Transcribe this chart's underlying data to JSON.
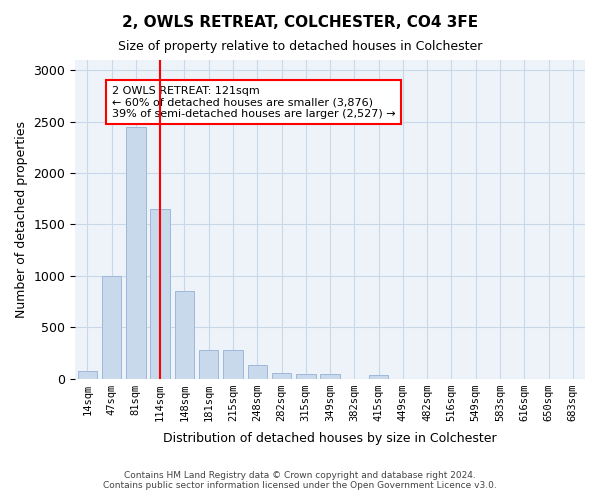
{
  "title": "2, OWLS RETREAT, COLCHESTER, CO4 3FE",
  "subtitle": "Size of property relative to detached houses in Colchester",
  "xlabel": "Distribution of detached houses by size in Colchester",
  "ylabel": "Number of detached properties",
  "categories": [
    "14sqm",
    "47sqm",
    "81sqm",
    "114sqm",
    "148sqm",
    "181sqm",
    "215sqm",
    "248sqm",
    "282sqm",
    "315sqm",
    "349sqm",
    "382sqm",
    "415sqm",
    "449sqm",
    "482sqm",
    "516sqm",
    "549sqm",
    "583sqm",
    "616sqm",
    "650sqm",
    "683sqm"
  ],
  "values": [
    75,
    1000,
    2450,
    1650,
    850,
    275,
    275,
    130,
    50,
    40,
    40,
    0,
    30,
    0,
    0,
    0,
    0,
    0,
    0,
    0,
    0
  ],
  "bar_color": "#c9d9ec",
  "bar_edge_color": "#a0b8d8",
  "grid_color": "#c8d8e8",
  "background_color": "#eef3f9",
  "vline_x": 2,
  "vline_color": "red",
  "annotation_text": "2 OWLS RETREAT: 121sqm\n← 60% of detached houses are smaller (3,876)\n39% of semi-detached houses are larger (2,527) →",
  "annotation_box_color": "white",
  "annotation_box_edge": "red",
  "footer_line1": "Contains HM Land Registry data © Crown copyright and database right 2024.",
  "footer_line2": "Contains public sector information licensed under the Open Government Licence v3.0.",
  "ylim": [
    0,
    3100
  ]
}
